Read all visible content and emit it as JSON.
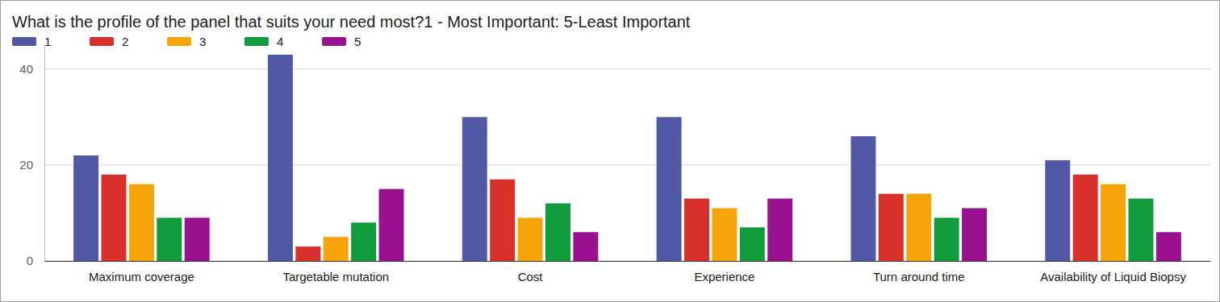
{
  "chart_data": {
    "type": "bar",
    "title": "What is the profile of the panel that suits your need most?1 - Most Important: 5-Least Important",
    "categories": [
      "Maximum coverage",
      "Targetable mutation",
      "Cost",
      "Experience",
      "Turn around time",
      "Availability of Liquid Biopsy"
    ],
    "series": [
      {
        "name": "1",
        "color": "#5158a6",
        "values": [
          22,
          43,
          30,
          30,
          26,
          21
        ]
      },
      {
        "name": "2",
        "color": "#d8312c",
        "values": [
          18,
          3,
          17,
          13,
          14,
          18
        ]
      },
      {
        "name": "3",
        "color": "#f6a40a",
        "values": [
          16,
          5,
          9,
          11,
          14,
          16
        ]
      },
      {
        "name": "4",
        "color": "#109c3c",
        "values": [
          9,
          8,
          12,
          7,
          9,
          13
        ]
      },
      {
        "name": "5",
        "color": "#99118f",
        "values": [
          9,
          15,
          6,
          13,
          11,
          6
        ]
      }
    ],
    "ylim": [
      0,
      45
    ],
    "yticks": [
      0,
      20,
      40
    ],
    "grid": true,
    "legend": "top-left"
  }
}
